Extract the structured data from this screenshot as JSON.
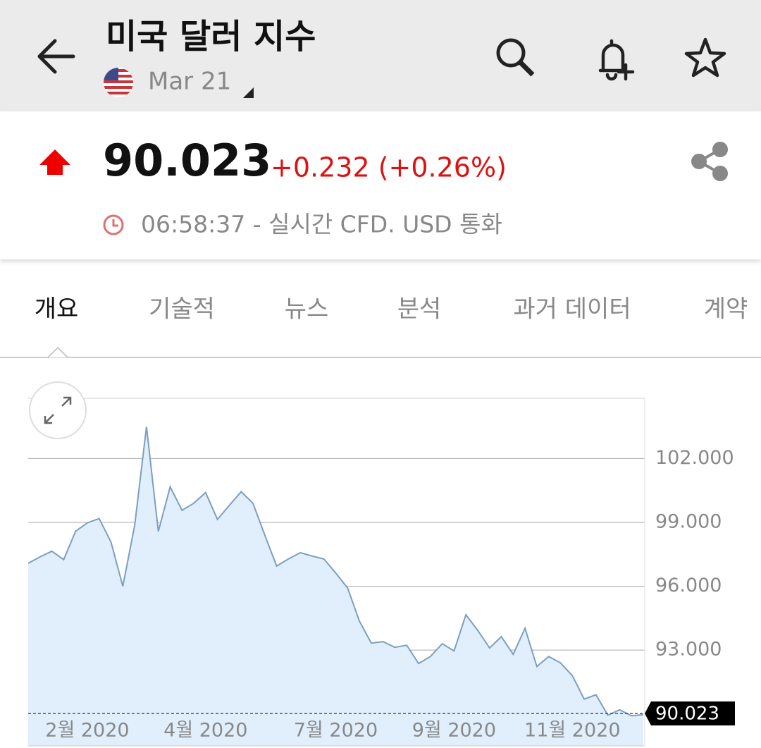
{
  "header": {
    "title": "미국 달러 지수",
    "contract": "Mar 21"
  },
  "quote": {
    "price": "90.023",
    "change": "+0.232 (+0.26%)",
    "time": "06:58:37 - 실시간 CFD. USD 통화"
  },
  "tabs": [
    "개요",
    "기술적",
    "뉴스",
    "분석",
    "과거 데이터",
    "계약"
  ],
  "chart_data": {
    "type": "area",
    "categories": [
      null,
      null,
      null,
      null,
      null,
      "2월 2020",
      null,
      null,
      null,
      null,
      null,
      null,
      null,
      null,
      null,
      "4월 2020",
      null,
      null,
      null,
      null,
      null,
      null,
      null,
      null,
      null,
      null,
      "7월 2020",
      null,
      null,
      null,
      null,
      null,
      null,
      null,
      null,
      null,
      "9월 2020",
      null,
      null,
      null,
      null,
      null,
      null,
      null,
      null,
      null,
      "11월 2020",
      null,
      null,
      null,
      null,
      null,
      null
    ],
    "values": [
      97.08,
      97.38,
      97.65,
      97.25,
      98.58,
      98.98,
      99.18,
      98.08,
      96.0,
      98.85,
      103.5,
      98.58,
      100.67,
      99.57,
      99.9,
      100.4,
      99.14,
      99.8,
      100.44,
      99.9,
      98.4,
      96.95,
      97.28,
      97.58,
      97.42,
      97.28,
      96.62,
      95.92,
      94.36,
      93.33,
      93.4,
      93.13,
      93.23,
      92.37,
      92.7,
      93.3,
      92.96,
      94.66,
      93.93,
      93.1,
      93.63,
      92.8,
      94.03,
      92.23,
      92.7,
      92.4,
      91.8,
      90.7,
      90.9,
      89.94,
      90.2,
      89.91,
      89.97
    ],
    "last_value": 90.023,
    "color": "#7b9fc0",
    "fill": "#e1effc",
    "ylim": [
      88.5,
      104.83
    ],
    "yticks": [
      {
        "value": 93,
        "label": "93.000"
      },
      {
        "value": 96,
        "label": "96.000"
      },
      {
        "value": 99,
        "label": "99.000"
      },
      {
        "value": 102,
        "label": "102.000"
      }
    ],
    "grid": true
  }
}
